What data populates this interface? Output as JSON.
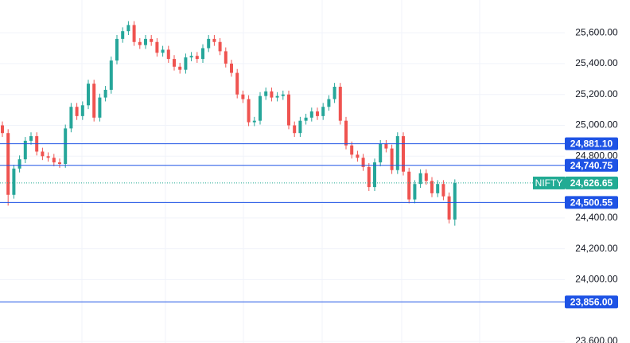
{
  "chart_data": {
    "type": "candlestick",
    "open": [
      25000,
      24950,
      24550,
      24720,
      24780,
      24900,
      24930,
      24830,
      24800,
      24790,
      24760,
      24750,
      24980,
      25120,
      25060,
      25130,
      25270,
      25050,
      25180,
      25230,
      25420,
      25560,
      25610,
      25650,
      25540,
      25520,
      25560,
      25540,
      25470,
      25490,
      25430,
      25380,
      25360,
      25440,
      25450,
      25430,
      25500,
      25560,
      25540,
      25480,
      25400,
      25340,
      25200,
      25170,
      25020,
      25030,
      25190,
      25220,
      25180,
      25190,
      25200,
      25000,
      24950,
      25030,
      25050,
      25090,
      25060,
      25120,
      25170,
      25250,
      25030,
      24870,
      24810,
      24790,
      24730,
      24600,
      24760,
      24880,
      24850,
      24710,
      24930,
      24700,
      24520,
      24620,
      24690,
      24640,
      24560,
      24620,
      24540,
      24390
    ],
    "high": [
      25025,
      24975,
      24745,
      24805,
      24925,
      24955,
      24955,
      24855,
      24825,
      24815,
      24785,
      25005,
      25145,
      25145,
      25155,
      25295,
      25295,
      25205,
      25255,
      25445,
      25585,
      25635,
      25675,
      25675,
      25565,
      25585,
      25585,
      25565,
      25515,
      25515,
      25455,
      25405,
      25465,
      25475,
      25475,
      25525,
      25585,
      25585,
      25565,
      25505,
      25425,
      25365,
      25225,
      25195,
      25055,
      25215,
      25245,
      25245,
      25215,
      25225,
      25225,
      25025,
      25055,
      25075,
      25115,
      25115,
      25145,
      25195,
      25275,
      25275,
      25055,
      24895,
      24835,
      24815,
      24755,
      24785,
      24905,
      24905,
      24875,
      24955,
      24955,
      24725,
      24645,
      24715,
      24715,
      24665,
      24645,
      24645,
      24565,
      24650
    ],
    "low": [
      24925,
      24480,
      24525,
      24695,
      24755,
      24875,
      24805,
      24775,
      24765,
      24735,
      24725,
      24725,
      24955,
      25035,
      25035,
      25105,
      25025,
      25025,
      25155,
      25205,
      25395,
      25535,
      25585,
      25515,
      25495,
      25495,
      25515,
      25445,
      25445,
      25405,
      25355,
      25335,
      25335,
      25415,
      25405,
      25405,
      25475,
      25515,
      25455,
      25375,
      25315,
      25175,
      25145,
      24995,
      24995,
      25005,
      25165,
      25155,
      25155,
      25165,
      24975,
      24925,
      24925,
      25005,
      25025,
      25035,
      25035,
      25095,
      25145,
      25005,
      24845,
      24785,
      24765,
      24705,
      24575,
      24575,
      24735,
      24825,
      24685,
      24685,
      24675,
      24495,
      24495,
      24595,
      24615,
      24535,
      24535,
      24515,
      24365,
      24350
    ],
    "close": [
      24950,
      24550,
      24720,
      24780,
      24900,
      24930,
      24830,
      24800,
      24790,
      24760,
      24750,
      24980,
      25120,
      25060,
      25130,
      25270,
      25050,
      25180,
      25230,
      25420,
      25560,
      25610,
      25650,
      25540,
      25520,
      25560,
      25540,
      25470,
      25490,
      25430,
      25380,
      25360,
      25440,
      25450,
      25430,
      25500,
      25560,
      25540,
      25480,
      25400,
      25340,
      25200,
      25170,
      25020,
      25030,
      25190,
      25220,
      25180,
      25190,
      25200,
      25000,
      24950,
      25030,
      25050,
      25090,
      25060,
      25120,
      25170,
      25250,
      25030,
      24870,
      24810,
      24790,
      24730,
      24600,
      24760,
      24880,
      24850,
      24710,
      24930,
      24700,
      24520,
      24620,
      24690,
      24640,
      24560,
      24620,
      24540,
      24390,
      24626.65
    ],
    "up_color": "#26a69a",
    "down_color": "#ef5350",
    "ylim": [
      23590,
      25812
    ],
    "yticks": [
      {
        "value": 25600,
        "label": "25,600.00"
      },
      {
        "value": 25400,
        "label": "25,400.00"
      },
      {
        "value": 25200,
        "label": "25,200.00"
      },
      {
        "value": 25000,
        "label": "25,000.00"
      },
      {
        "value": 24800,
        "label": "24,800.00"
      },
      {
        "value": 24400,
        "label": "24,400.00"
      },
      {
        "value": 24200,
        "label": "24,200.00"
      },
      {
        "value": 24000,
        "label": "24,000.00"
      },
      {
        "value": 23600,
        "label": "23,600.00"
      }
    ],
    "grid": true,
    "price_lines": [
      {
        "value": 24881.1,
        "label": "24,881.10"
      },
      {
        "value": 24740.75,
        "label": "24,740.75"
      },
      {
        "value": 24500.55,
        "label": "24,500.55"
      },
      {
        "value": 23856,
        "label": "23,856.00"
      }
    ],
    "price_line_color": "#1e53e5",
    "last_price": {
      "name": "NIFTY",
      "value": 24626.65,
      "label": "24,626.65",
      "color": "#22ab94"
    }
  }
}
